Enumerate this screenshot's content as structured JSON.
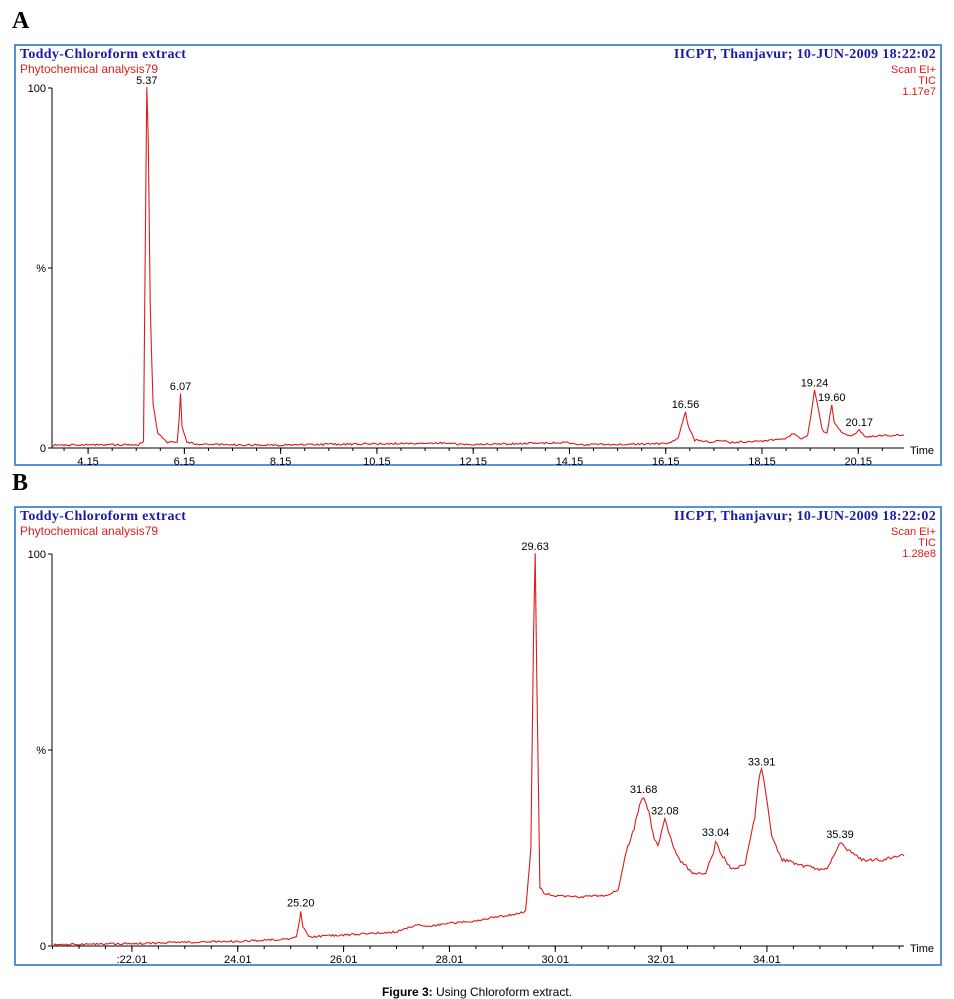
{
  "figure": {
    "caption_label": "Figure 3:",
    "caption_text": " Using Chloroform extract."
  },
  "panels": [
    {
      "label": "A",
      "title_left": "Toddy-Chloroform extract",
      "subtitle_left": "Phytochemical analysis79",
      "title_right": "IICPT, Thanjavur; 10-JUN-2009 18:22:02",
      "scan": "Scan  EI+",
      "tic": "TIC",
      "intensity": "1.17e7"
    },
    {
      "label": "B",
      "title_left": "Toddy-Chloroform extract",
      "subtitle_left": "Phytochemical analysis79",
      "title_right": "IICPT, Thanjavur; 10-JUN-2009 18:22:02",
      "scan": "Scan  EI+",
      "tic": "TIC",
      "intensity": "1.28e8"
    }
  ],
  "chart_data": [
    {
      "type": "line",
      "color": "#e01b1b",
      "xlabel": "Time",
      "ylabel": "%",
      "xlim": [
        3.4,
        21.1
      ],
      "ylim": [
        0,
        100
      ],
      "x_ticks": [
        "4.15",
        "6.15",
        "8.15",
        "10.15",
        "12.15",
        "14.15",
        "16.15",
        "18.15",
        "20.15"
      ],
      "x_tick_values": [
        4.15,
        6.15,
        8.15,
        10.15,
        12.15,
        14.15,
        16.15,
        18.15,
        20.15
      ],
      "y_ticks": [
        "100",
        "%",
        "0"
      ],
      "y_tick_values": [
        100,
        50,
        0
      ],
      "baseline": 0.8,
      "points": [
        [
          3.4,
          0.8
        ],
        [
          5.2,
          0.9
        ],
        [
          5.3,
          2
        ],
        [
          5.34,
          60
        ],
        [
          5.37,
          100
        ],
        [
          5.4,
          85
        ],
        [
          5.44,
          40
        ],
        [
          5.5,
          12
        ],
        [
          5.6,
          4
        ],
        [
          5.8,
          1.6
        ],
        [
          6.0,
          1.4
        ],
        [
          6.04,
          8
        ],
        [
          6.07,
          15
        ],
        [
          6.1,
          6
        ],
        [
          6.2,
          1.5
        ],
        [
          6.5,
          1.0
        ],
        [
          8.0,
          0.8
        ],
        [
          11.5,
          1.4
        ],
        [
          12.0,
          0.9
        ],
        [
          14.1,
          1.5
        ],
        [
          14.3,
          0.9
        ],
        [
          16.2,
          1.2
        ],
        [
          16.4,
          2.5
        ],
        [
          16.5,
          7
        ],
        [
          16.56,
          10
        ],
        [
          16.62,
          6
        ],
        [
          16.75,
          2.2
        ],
        [
          17.1,
          1.6
        ],
        [
          17.3,
          2.2
        ],
        [
          17.5,
          1.5
        ],
        [
          18.2,
          2.0
        ],
        [
          18.6,
          2.5
        ],
        [
          18.8,
          4
        ],
        [
          18.95,
          2.5
        ],
        [
          19.1,
          3.5
        ],
        [
          19.2,
          12
        ],
        [
          19.24,
          16
        ],
        [
          19.3,
          12
        ],
        [
          19.4,
          5
        ],
        [
          19.5,
          4
        ],
        [
          19.56,
          9
        ],
        [
          19.6,
          12
        ],
        [
          19.65,
          7
        ],
        [
          19.8,
          4.5
        ],
        [
          20.0,
          3.2
        ],
        [
          20.17,
          5
        ],
        [
          20.3,
          3
        ],
        [
          20.6,
          3.5
        ],
        [
          21.1,
          3.5
        ]
      ],
      "peaks": [
        {
          "x": 5.37,
          "y": 100,
          "label": "5.37"
        },
        {
          "x": 6.07,
          "y": 15,
          "label": "6.07"
        },
        {
          "x": 16.56,
          "y": 10,
          "label": "16.56"
        },
        {
          "x": 19.24,
          "y": 16,
          "label": "19.24"
        },
        {
          "x": 19.6,
          "y": 12,
          "label": "19.60"
        },
        {
          "x": 20.17,
          "y": 5,
          "label": "20.17"
        }
      ]
    },
    {
      "type": "line",
      "color": "#e01b1b",
      "xlabel": "Time",
      "ylabel": "%",
      "xlim": [
        20.5,
        36.6
      ],
      "ylim": [
        0,
        100
      ],
      "x_ticks": [
        ":22.01",
        "24.01",
        "26.01",
        "28.01",
        "30.01",
        "32.01",
        "34.01"
      ],
      "x_tick_values": [
        22.01,
        24.01,
        26.01,
        28.01,
        30.01,
        32.01,
        34.01
      ],
      "y_ticks": [
        "100",
        "%",
        "0"
      ],
      "y_tick_values": [
        100,
        50,
        0
      ],
      "points": [
        [
          20.5,
          0.3
        ],
        [
          22.0,
          0.6
        ],
        [
          24.0,
          1.2
        ],
        [
          25.0,
          1.8
        ],
        [
          25.12,
          2.4
        ],
        [
          25.18,
          6.5
        ],
        [
          25.2,
          9
        ],
        [
          25.24,
          5
        ],
        [
          25.35,
          2.3
        ],
        [
          26.0,
          2.8
        ],
        [
          27.0,
          3.6
        ],
        [
          27.4,
          5.5
        ],
        [
          27.6,
          5.0
        ],
        [
          28.0,
          5.8
        ],
        [
          28.5,
          6.3
        ],
        [
          28.8,
          7.2
        ],
        [
          29.2,
          8.0
        ],
        [
          29.45,
          8.8
        ],
        [
          29.55,
          25
        ],
        [
          29.6,
          80
        ],
        [
          29.63,
          100
        ],
        [
          29.66,
          70
        ],
        [
          29.72,
          15
        ],
        [
          29.8,
          13.5
        ],
        [
          30.0,
          12.8
        ],
        [
          30.5,
          12.5
        ],
        [
          31.0,
          13.0
        ],
        [
          31.2,
          14.5
        ],
        [
          31.35,
          24
        ],
        [
          31.5,
          30
        ],
        [
          31.6,
          36
        ],
        [
          31.68,
          38
        ],
        [
          31.78,
          34
        ],
        [
          31.88,
          27
        ],
        [
          31.95,
          25.5
        ],
        [
          32.02,
          29
        ],
        [
          32.08,
          32.5
        ],
        [
          32.15,
          29
        ],
        [
          32.3,
          23
        ],
        [
          32.6,
          18.5
        ],
        [
          32.85,
          18.5
        ],
        [
          33.0,
          24
        ],
        [
          33.04,
          27
        ],
        [
          33.12,
          24
        ],
        [
          33.35,
          19.5
        ],
        [
          33.6,
          21
        ],
        [
          33.78,
          33
        ],
        [
          33.86,
          43
        ],
        [
          33.91,
          45
        ],
        [
          33.98,
          40
        ],
        [
          34.1,
          28
        ],
        [
          34.3,
          22
        ],
        [
          34.7,
          20.5
        ],
        [
          35.0,
          19.5
        ],
        [
          35.15,
          19.7
        ],
        [
          35.3,
          24
        ],
        [
          35.39,
          26.5
        ],
        [
          35.5,
          25
        ],
        [
          35.8,
          22
        ],
        [
          36.2,
          22
        ],
        [
          36.6,
          23
        ]
      ],
      "peaks": [
        {
          "x": 25.2,
          "y": 9,
          "label": "25.20"
        },
        {
          "x": 29.63,
          "y": 100,
          "label": "29.63"
        },
        {
          "x": 31.68,
          "y": 38,
          "label": "31.68"
        },
        {
          "x": 32.08,
          "y": 32.5,
          "label": "32.08"
        },
        {
          "x": 33.04,
          "y": 27,
          "label": "33.04"
        },
        {
          "x": 33.91,
          "y": 45,
          "label": "33.91"
        },
        {
          "x": 35.39,
          "y": 26.5,
          "label": "35.39"
        }
      ]
    }
  ]
}
